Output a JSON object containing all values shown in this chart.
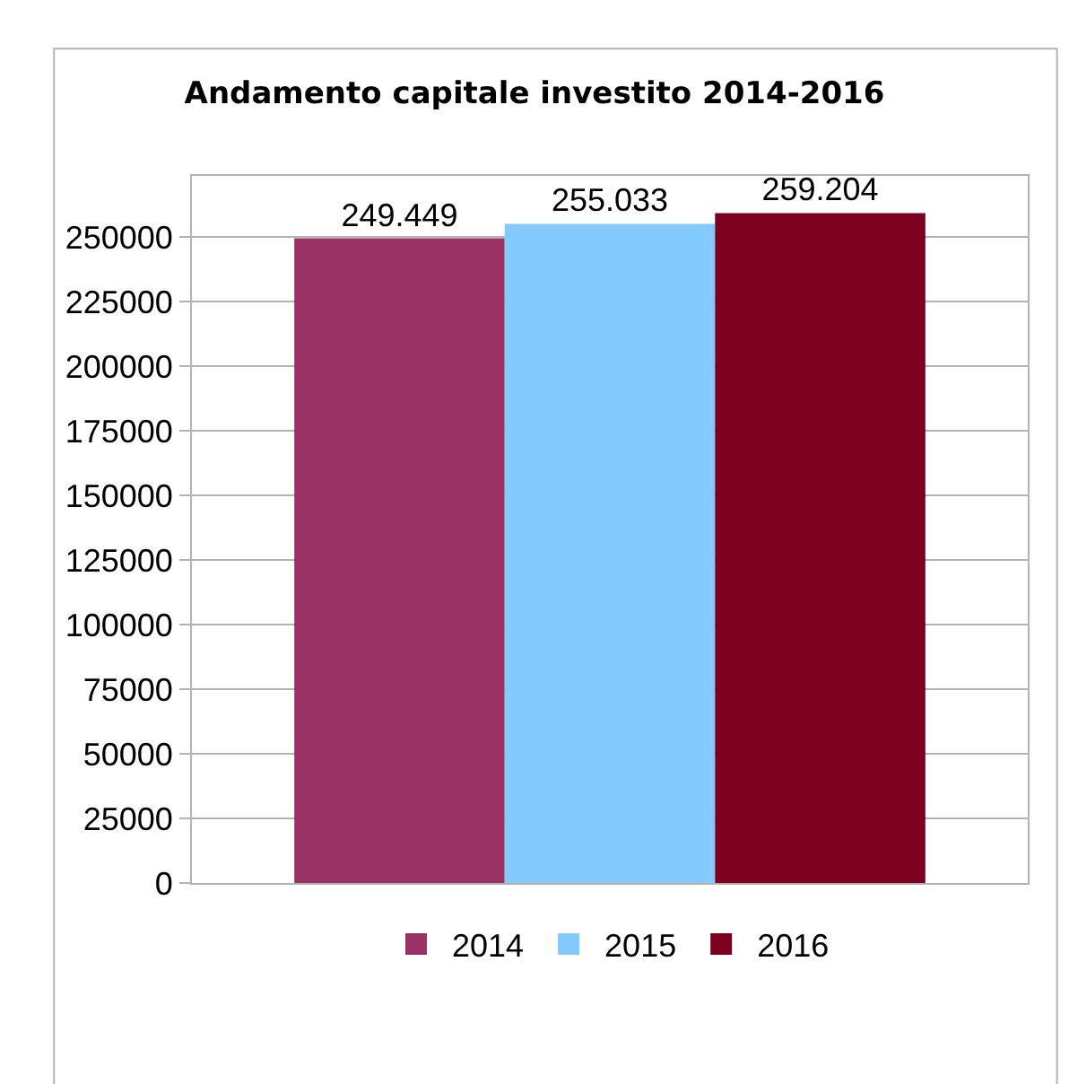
{
  "chart_data": {
    "type": "bar",
    "title": "Andamento capitale investito 2014-2016",
    "categories": [
      null
    ],
    "series": [
      {
        "name": "2014",
        "color": "#993366",
        "values": [
          249449
        ],
        "value_labels": [
          "249.449"
        ]
      },
      {
        "name": "2015",
        "color": "#83caff",
        "values": [
          255033
        ],
        "value_labels": [
          "255.033"
        ]
      },
      {
        "name": "2016",
        "color": "#7e0021",
        "values": [
          259204
        ],
        "value_labels": [
          "259.204"
        ]
      }
    ],
    "ylim": [
      0,
      273600
    ],
    "yticks": [
      0,
      25000,
      50000,
      75000,
      100000,
      125000,
      150000,
      175000,
      200000,
      225000,
      250000
    ],
    "grid": "y",
    "legend": "bottom"
  }
}
